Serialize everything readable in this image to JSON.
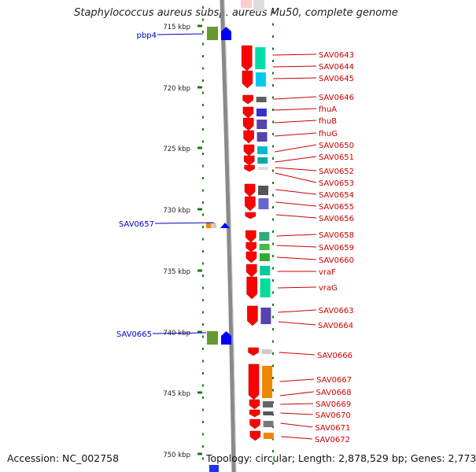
{
  "title": "Staphylococcus aureus subsp. aureus Mu50, complete genome",
  "accession_text": "Accession: NC_002758",
  "topology_text": "Topology: circular; Length: 2,878,529 bp; Genes: 2,773",
  "scale_ticks": [
    {
      "label": "715 kbp",
      "kbp": 715
    },
    {
      "label": "720 kbp",
      "kbp": 720
    },
    {
      "label": "725 kbp",
      "kbp": 725
    },
    {
      "label": "730 kbp",
      "kbp": 730
    },
    {
      "label": "735 kbp",
      "kbp": 735
    },
    {
      "label": "740 kbp",
      "kbp": 740
    },
    {
      "label": "745 kbp",
      "kbp": 745
    },
    {
      "label": "750 kbp",
      "kbp": 750
    }
  ],
  "left_genes": [
    {
      "label": "pbp4",
      "color": "#0000cc"
    },
    {
      "label": "SAV0657",
      "color": "#0000cc"
    },
    {
      "label": "SAV0665",
      "color": "#0000cc"
    }
  ],
  "right_genes": [
    {
      "label": "SAV0643"
    },
    {
      "label": "SAV0644"
    },
    {
      "label": "SAV0645"
    },
    {
      "label": "SAV0646"
    },
    {
      "label": "fhuA"
    },
    {
      "label": "fhuB"
    },
    {
      "label": "fhuG"
    },
    {
      "label": "SAV0650"
    },
    {
      "label": "SAV0651"
    },
    {
      "label": "SAV0652"
    },
    {
      "label": "SAV0653"
    },
    {
      "label": "SAV0654"
    },
    {
      "label": "SAV0655"
    },
    {
      "label": "SAV0656"
    },
    {
      "label": "SAV0658"
    },
    {
      "label": "SAV0659"
    },
    {
      "label": "SAV0660"
    },
    {
      "label": "vraF"
    },
    {
      "label": "vraG"
    },
    {
      "label": "SAV0663"
    },
    {
      "label": "SAV0664"
    },
    {
      "label": "SAV0666"
    },
    {
      "label": "SAV0667"
    },
    {
      "label": "SAV0668"
    },
    {
      "label": "SAV0669"
    },
    {
      "label": "SAV0670"
    },
    {
      "label": "SAV0671"
    },
    {
      "label": "SAV0672"
    }
  ],
  "colors": {
    "forward_gene": "#ff0000",
    "reverse_gene": "#0000ff",
    "label_right": "#cc0000",
    "label_left": "#0000cc",
    "backbone": "#888888",
    "tick": "#1a7a1a"
  }
}
